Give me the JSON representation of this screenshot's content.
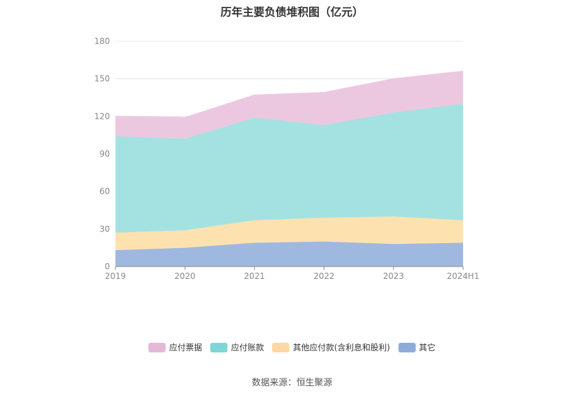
{
  "chart_data": {
    "type": "area",
    "stacked": true,
    "title": "历年主要负债堆积图（亿元）",
    "categories": [
      "2019",
      "2020",
      "2021",
      "2022",
      "2023",
      "2024H1"
    ],
    "ylim": [
      0,
      180
    ],
    "yticks": [
      0,
      30,
      60,
      90,
      120,
      150,
      180
    ],
    "grid": true,
    "legend_position": "bottom",
    "series": [
      {
        "name": "其它",
        "color": "#9fb8e0",
        "values": [
          13,
          15,
          19,
          20,
          18,
          19
        ]
      },
      {
        "name": "其他应付款(含利息和股利)",
        "color": "#fde2b0",
        "values": [
          14,
          14,
          18,
          19,
          22,
          18
        ]
      },
      {
        "name": "应付账款",
        "color": "#a4e2e2",
        "values": [
          77,
          73,
          82,
          74,
          83,
          93
        ]
      },
      {
        "name": "应付票据",
        "color": "#ecc8e0",
        "values": [
          16,
          17,
          18,
          26,
          27,
          26
        ]
      }
    ],
    "legend_order": [
      "应付票据",
      "应付账款",
      "其他应付款(含利息和股利)",
      "其它"
    ],
    "legend_colors": {
      "应付票据": "#e4b9d8",
      "应付账款": "#7fd6d6",
      "其他应付款(含利息和股利)": "#fcd9a2",
      "其它": "#8fabdc"
    }
  },
  "source": "数据来源：恒生聚源"
}
